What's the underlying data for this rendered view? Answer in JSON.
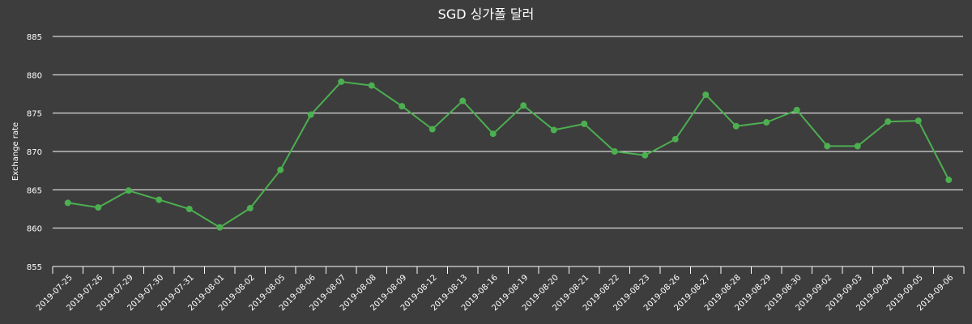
{
  "chart_data": {
    "type": "line",
    "title": "SGD 싱가폴 달러",
    "xlabel": "",
    "ylabel": "Exchange rate",
    "ylim": [
      855,
      885
    ],
    "yticks": [
      855,
      860,
      865,
      870,
      875,
      880,
      885
    ],
    "grid": true,
    "legend": null,
    "categories": [
      "2019-07-25",
      "2019-07-26",
      "2019-07-29",
      "2019-07-30",
      "2019-07-31",
      "2019-08-01",
      "2019-08-02",
      "2019-08-05",
      "2019-08-06",
      "2019-08-07",
      "2019-08-08",
      "2019-08-09",
      "2019-08-12",
      "2019-08-13",
      "2019-08-16",
      "2019-08-19",
      "2019-08-20",
      "2019-08-21",
      "2019-08-22",
      "2019-08-23",
      "2019-08-26",
      "2019-08-27",
      "2019-08-28",
      "2019-08-29",
      "2019-08-30",
      "2019-09-02",
      "2019-09-03",
      "2019-09-04",
      "2019-09-05",
      "2019-09-06"
    ],
    "series": [
      {
        "name": "SGD",
        "color": "#4caf50",
        "values": [
          863.3,
          862.7,
          864.9,
          863.7,
          862.5,
          860.1,
          862.6,
          867.6,
          874.8,
          879.1,
          878.6,
          875.9,
          872.9,
          876.6,
          872.3,
          876.0,
          872.8,
          873.6,
          870.0,
          869.5,
          871.6,
          877.4,
          873.3,
          873.8,
          875.4,
          870.7,
          870.7,
          873.9,
          874.0,
          866.3
        ]
      }
    ]
  },
  "colors": {
    "background": "#3d3d3d",
    "line": "#4caf50",
    "grid": "#ffffff",
    "text": "#ffffff"
  }
}
